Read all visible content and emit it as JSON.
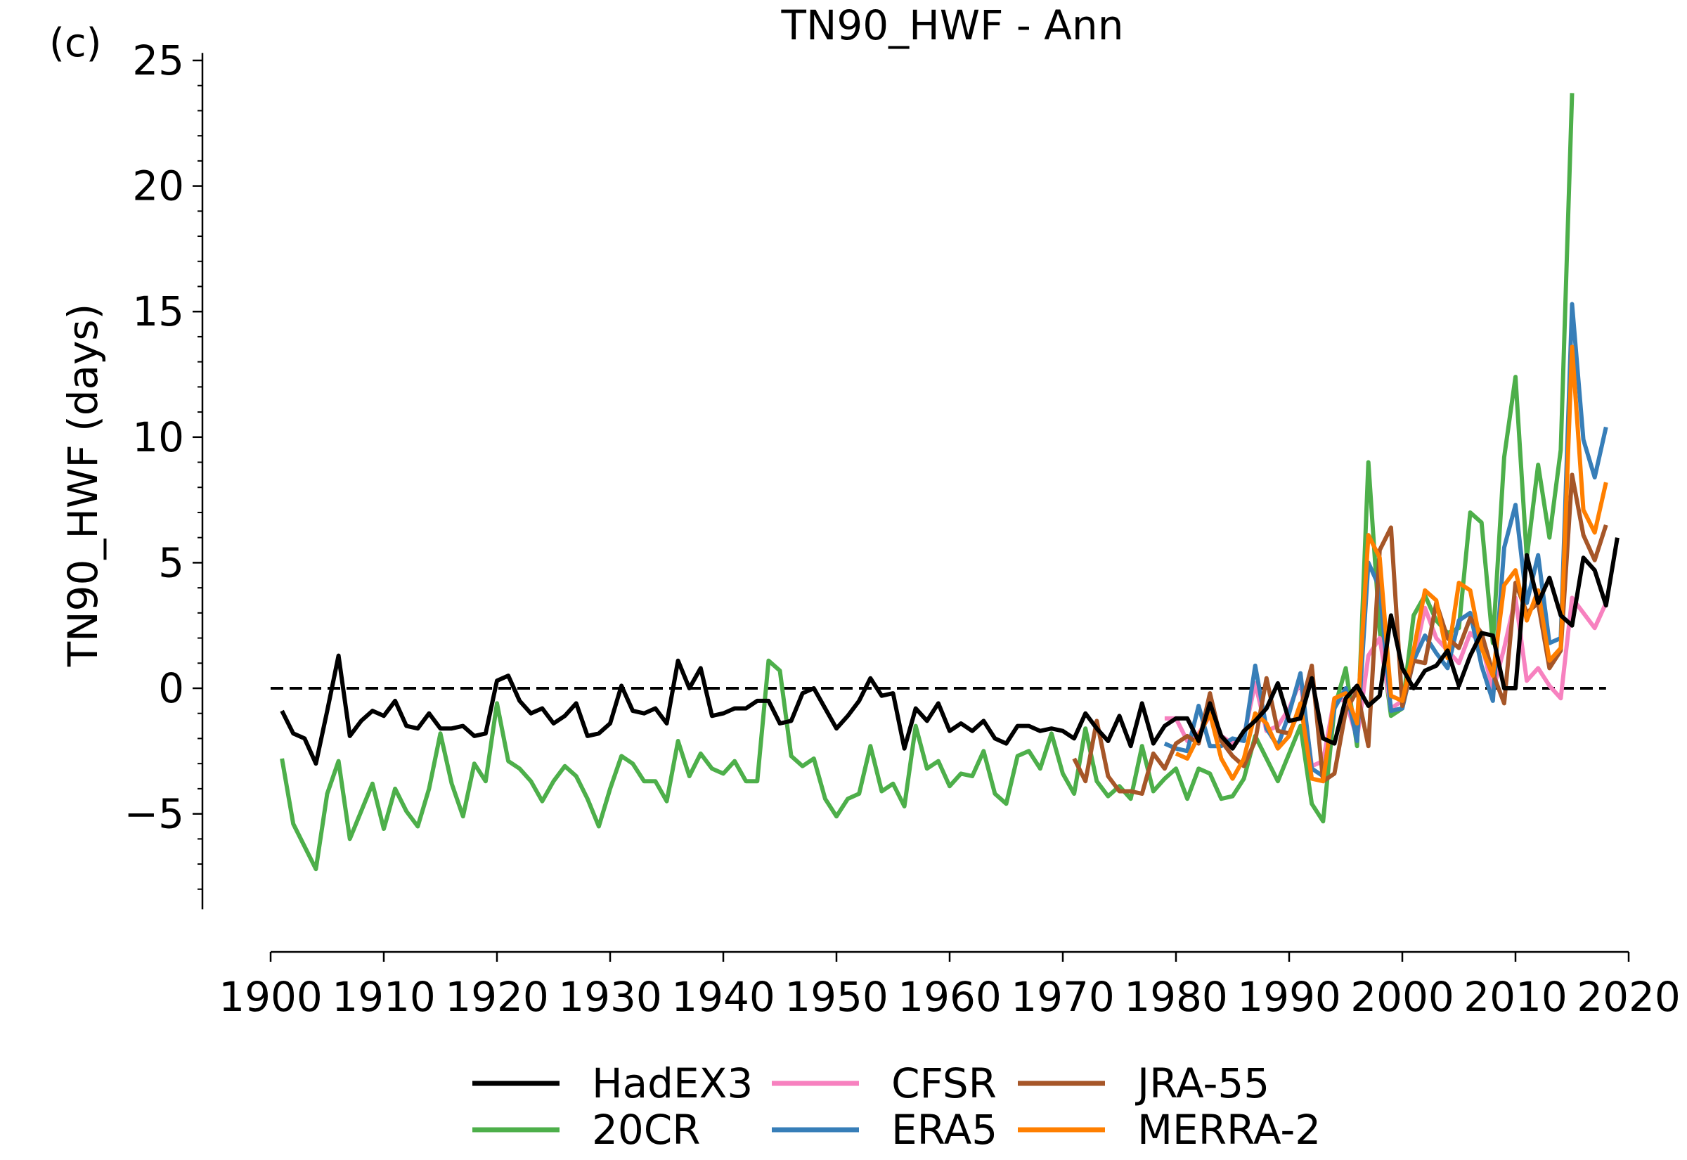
{
  "chart_data": {
    "type": "line",
    "panel_label": "(c)",
    "title": "TN90_HWF - Ann",
    "xlabel": "",
    "ylabel": "TN90_HWF (days)",
    "xlim": [
      1895,
      2021
    ],
    "ylim": [
      -8.8,
      25.3
    ],
    "xticks": [
      1900,
      1910,
      1920,
      1930,
      1940,
      1950,
      1960,
      1970,
      1980,
      1990,
      2000,
      2010,
      2020
    ],
    "yticks": [
      -5,
      0,
      5,
      10,
      15,
      20,
      25
    ],
    "ytick_labels": [
      "−5",
      "0",
      "5",
      "10",
      "15",
      "20",
      "25"
    ],
    "grid": false,
    "reference_line": {
      "y": 0,
      "style": "dashed",
      "color": "#000000"
    },
    "legend_position": "bottom-center",
    "legend_columns": [
      [
        "HadEX3",
        "20CR"
      ],
      [
        "CFSR",
        "ERA5"
      ],
      [
        "JRA-55",
        "MERRA-2"
      ]
    ],
    "series": [
      {
        "name": "20CR",
        "color": "#4daf4a",
        "start_year": 1901,
        "values": [
          -2.8,
          -5.4,
          -6.3,
          -7.2,
          -4.2,
          -2.9,
          -6.0,
          -4.9,
          -3.8,
          -5.6,
          -4.0,
          -4.9,
          -5.5,
          -4.0,
          -1.8,
          -3.8,
          -5.1,
          -3.0,
          -3.7,
          -0.6,
          -2.9,
          -3.2,
          -3.7,
          -4.5,
          -3.7,
          -3.1,
          -3.5,
          -4.4,
          -5.5,
          -4.0,
          -2.7,
          -3.0,
          -3.7,
          -3.7,
          -4.5,
          -2.1,
          -3.5,
          -2.6,
          -3.2,
          -3.4,
          -2.9,
          -3.7,
          -3.7,
          1.1,
          0.7,
          -2.7,
          -3.1,
          -2.8,
          -4.4,
          -5.1,
          -4.4,
          -4.2,
          -2.3,
          -4.1,
          -3.8,
          -4.7,
          -1.5,
          -3.2,
          -2.9,
          -3.9,
          -3.4,
          -3.5,
          -2.5,
          -4.2,
          -4.6,
          -2.7,
          -2.5,
          -3.2,
          -1.8,
          -3.4,
          -4.2,
          -1.6,
          -3.7,
          -4.3,
          -3.9,
          -4.4,
          -2.3,
          -4.1,
          -3.6,
          -3.2,
          -4.4,
          -3.2,
          -3.4,
          -4.4,
          -4.3,
          -3.6,
          -1.9,
          -2.8,
          -3.7,
          -2.6,
          -1.5,
          -4.6,
          -5.3,
          -0.8,
          0.8,
          -2.3,
          9.0,
          2.3,
          -1.1,
          -0.8,
          2.9,
          3.7,
          2.7,
          2.2,
          2.4,
          7.0,
          6.6,
          1.8,
          9.2,
          12.4,
          5.2,
          8.9,
          6.0,
          9.5,
          23.7
        ]
      },
      {
        "name": "CFSR",
        "color": "#f781bf",
        "start_year": 1979,
        "values": [
          -1.2,
          -1.2,
          -2.1,
          -1.8,
          -1.1,
          -1.9,
          -2.2,
          -1.9,
          0.2,
          -1.7,
          -1.5,
          -0.8,
          0.3,
          -3.1,
          -2.9,
          -0.4,
          -0.5,
          -2.0,
          1.3,
          2.0,
          -0.8,
          -0.5,
          1.1,
          3.2,
          2.0,
          1.5,
          1.0,
          2.2,
          1.8,
          -0.1,
          1.6,
          3.6,
          0.3,
          0.8,
          0.1,
          -0.4,
          3.6,
          3.0,
          2.4,
          3.4
        ]
      },
      {
        "name": "ERA5",
        "color": "#377eb8",
        "start_year": 1979,
        "values": [
          -2.2,
          -2.4,
          -2.5,
          -0.7,
          -2.3,
          -2.3,
          -2.0,
          -2.1,
          0.9,
          -1.6,
          -2.3,
          -1.0,
          0.6,
          -3.2,
          -3.5,
          -0.8,
          0.0,
          -2.1,
          5.0,
          4.0,
          -0.9,
          -0.8,
          1.1,
          2.1,
          1.4,
          0.8,
          2.7,
          3.0,
          0.9,
          -0.5,
          5.6,
          7.3,
          3.4,
          5.3,
          1.8,
          2.0,
          15.3,
          9.9,
          8.4,
          10.4
        ]
      },
      {
        "name": "JRA-55",
        "color": "#a65628",
        "start_year": 1971,
        "values": [
          -2.8,
          -3.7,
          -1.3,
          -3.5,
          -4.1,
          -4.1,
          -4.2,
          -2.6,
          -3.2,
          -2.2,
          -1.9,
          -2.2,
          -0.2,
          -2.1,
          -2.7,
          -3.1,
          -2.1,
          0.4,
          -1.7,
          -1.8,
          -0.8,
          0.9,
          -3.7,
          -3.4,
          -0.9,
          -0.1,
          -2.3,
          5.5,
          6.4,
          -0.7,
          1.1,
          1.0,
          3.4,
          2.0,
          1.6,
          2.8,
          2.2,
          0.6,
          -0.6,
          4.2,
          3.0,
          3.4,
          0.8,
          1.5,
          8.5,
          6.1,
          5.1,
          6.5
        ]
      },
      {
        "name": "MERRA-2",
        "color": "#ff7f00",
        "start_year": 1980,
        "values": [
          -2.6,
          -2.8,
          -1.9,
          -1.0,
          -2.8,
          -3.6,
          -2.8,
          -1.0,
          -1.4,
          -2.4,
          -1.9,
          -0.6,
          -3.6,
          -3.7,
          -0.4,
          -0.2,
          -1.4,
          6.1,
          5.2,
          -0.3,
          -0.5,
          1.5,
          3.9,
          3.5,
          1.2,
          4.2,
          3.9,
          1.6,
          0.5,
          4.1,
          4.7,
          2.7,
          3.9,
          1.1,
          1.6,
          13.6,
          7.1,
          6.2,
          8.2
        ]
      },
      {
        "name": "HadEX3",
        "color": "#000000",
        "start_year": 1901,
        "values": [
          -0.9,
          -1.8,
          -2.0,
          -3.0,
          -0.9,
          1.3,
          -1.9,
          -1.3,
          -0.9,
          -1.1,
          -0.5,
          -1.5,
          -1.6,
          -1.0,
          -1.6,
          -1.6,
          -1.5,
          -1.9,
          -1.8,
          0.3,
          0.5,
          -0.5,
          -1.0,
          -0.8,
          -1.4,
          -1.1,
          -0.6,
          -1.9,
          -1.8,
          -1.4,
          0.1,
          -0.9,
          -1.0,
          -0.8,
          -1.4,
          1.1,
          0.0,
          0.8,
          -1.1,
          -1.0,
          -0.8,
          -0.8,
          -0.5,
          -0.5,
          -1.4,
          -1.3,
          -0.2,
          0.0,
          -0.8,
          -1.6,
          -1.1,
          -0.5,
          0.4,
          -0.3,
          -0.2,
          -2.4,
          -0.8,
          -1.3,
          -0.6,
          -1.7,
          -1.4,
          -1.7,
          -1.3,
          -2.0,
          -2.2,
          -1.5,
          -1.5,
          -1.7,
          -1.6,
          -1.7,
          -2.0,
          -1.0,
          -1.6,
          -2.1,
          -1.1,
          -2.3,
          -0.6,
          -2.2,
          -1.5,
          -1.2,
          -1.2,
          -2.1,
          -0.6,
          -1.9,
          -2.4,
          -1.7,
          -1.3,
          -0.8,
          0.2,
          -1.3,
          -1.2,
          0.4,
          -2.0,
          -2.2,
          -0.4,
          0.1,
          -0.7,
          -0.3,
          2.9,
          0.8,
          0.0,
          0.7,
          0.9,
          1.5,
          0.1,
          1.3,
          2.2,
          2.1,
          0.0,
          0.0,
          5.3,
          3.4,
          4.4,
          2.9,
          2.5,
          5.2,
          4.7,
          3.3,
          6.0
        ]
      }
    ]
  }
}
